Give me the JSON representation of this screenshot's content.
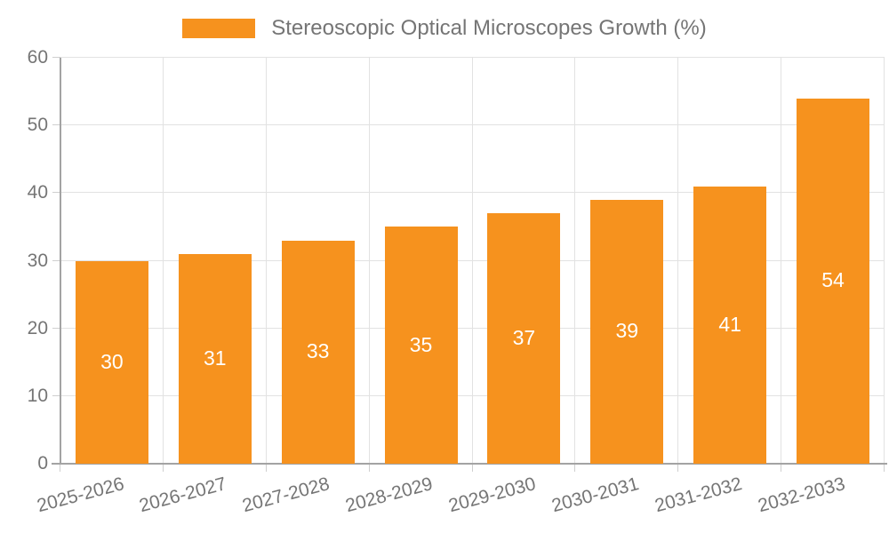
{
  "chart_data": {
    "type": "bar",
    "title": "",
    "legend": "Stereoscopic Optical Microscopes Growth (%)",
    "legend_position": "top-center",
    "categories": [
      "2025-2026",
      "2026-2027",
      "2027-2028",
      "2028-2029",
      "2029-2030",
      "2030-2031",
      "2031-2032",
      "2032-2033"
    ],
    "values": [
      30,
      31,
      33,
      35,
      37,
      39,
      41,
      54
    ],
    "xlabel": "",
    "ylabel": "",
    "ylim": [
      0,
      60
    ],
    "yticks": [
      0,
      10,
      20,
      30,
      40,
      50,
      60
    ],
    "grid": true,
    "bar_labels_inside": true
  },
  "colors": {
    "bar": "#F6921E",
    "bar_label": "#FFFFFF",
    "axis": "#A3A3A3",
    "grid": "#E2E2E2",
    "tick": "#CFCFCF",
    "text": "#757575"
  }
}
